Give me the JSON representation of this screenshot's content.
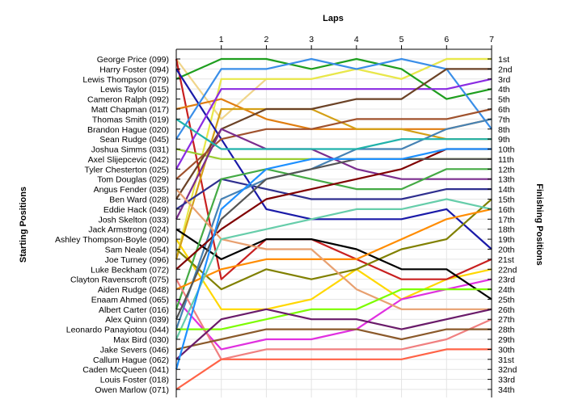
{
  "chart_data": {
    "type": "line",
    "title": "Laps",
    "ylabel_left": "Starting Positions",
    "ylabel_right": "Finishing Positions",
    "x": [
      0,
      1,
      2,
      3,
      4,
      5,
      6,
      7
    ],
    "x_tick_labels": [
      "1",
      "2",
      "3",
      "4",
      "5",
      "6",
      "7"
    ],
    "ylim": [
      1,
      34
    ],
    "y_inverted": true,
    "grid": true,
    "starting_labels": [
      "George Price (099)",
      "Harry Foster (094)",
      "Lewis Thompson (079)",
      "Lewis Taylor (015)",
      "Cameron Ralph (092)",
      "Matt Chapman (017)",
      "Thomas Smith (019)",
      "Brandon Hague (020)",
      "Sean Rudge (045)",
      "Joshua Simms (031)",
      "Axel Slijepcevic (042)",
      "Tyler Chesterton (025)",
      "Tom Douglas (029)",
      "Angus Fender (035)",
      "Ben Ward (028)",
      "Eddie Hack (049)",
      "Josh Skelton (033)",
      "Jack Armstrong (024)",
      "Ashley Thompson-Boyle (090)",
      "Sam Neale (054)",
      "Joe Turney (096)",
      "Luke Beckham (072)",
      "Clayton Ravenscroft (075)",
      "Aiden Rudge (048)",
      "Enaam Ahmed (065)",
      "Albert Carter (016)",
      "Alex Quinn (039)",
      "Leonardo Panayiotou (044)",
      "Max Bird (030)",
      "Jake Severs (046)",
      "Callum Hague (062)",
      "Caden McQueen (041)",
      "Louis Foster (018)",
      "Owen Marlow (071)"
    ],
    "finishing_labels": [
      "1st",
      "2nd",
      "3rd",
      "4th",
      "5th",
      "6th",
      "7th",
      "8th",
      "9th",
      "10th",
      "11th",
      "12th",
      "13th",
      "14th",
      "15th",
      "16th",
      "17th",
      "18th",
      "19th",
      "20th",
      "21st",
      "22nd",
      "23rd",
      "24th",
      "25th",
      "26th",
      "27th",
      "28th",
      "29th",
      "30th",
      "31st",
      "32nd",
      "33rd",
      "34th"
    ],
    "series": [
      {
        "color": "#ffd700",
        "positions": [
          19,
          26,
          26,
          25,
          22,
          25,
          23,
          22
        ]
      },
      {
        "color": "#f0d58a",
        "positions": [
          1,
          7,
          3,
          3,
          2,
          3,
          1,
          1
        ]
      },
      {
        "color": "#e8e84a",
        "positions": [
          21,
          3,
          3,
          3,
          2,
          3,
          1,
          1
        ]
      },
      {
        "color": "#1e9e1e",
        "positions": [
          3,
          1,
          1,
          2,
          1,
          2,
          5,
          4
        ]
      },
      {
        "color": "#c82020",
        "positions": [
          1,
          23,
          19,
          19,
          21,
          23,
          23,
          21
        ]
      },
      {
        "color": "#e07d10",
        "positions": [
          6,
          5,
          7,
          8,
          8,
          8,
          8,
          7
        ]
      },
      {
        "color": "#d4a017",
        "positions": [
          21,
          6,
          6,
          6,
          8,
          8,
          9,
          9
        ]
      },
      {
        "color": "#1a1aa8",
        "positions": [
          2,
          9,
          16,
          17,
          17,
          17,
          16,
          20
        ]
      },
      {
        "color": "#3a8ee8",
        "positions": [
          9,
          2,
          2,
          1,
          2,
          1,
          2,
          8
        ]
      },
      {
        "color": "#9acd32",
        "positions": [
          10,
          11,
          11,
          11,
          11,
          11,
          11,
          11
        ]
      },
      {
        "color": "#8a2be2",
        "positions": [
          12,
          4,
          4,
          4,
          4,
          4,
          4,
          3
        ]
      },
      {
        "color": "#6b4226",
        "positions": [
          15,
          8,
          6,
          6,
          5,
          5,
          2,
          2
        ]
      },
      {
        "color": "#808000",
        "positions": [
          20,
          24,
          22,
          23,
          22,
          20,
          19,
          15
        ]
      },
      {
        "color": "#a0522d",
        "positions": [
          13,
          9,
          8,
          8,
          7,
          7,
          7,
          6
        ]
      },
      {
        "color": "#7b2d8e",
        "positions": [
          17,
          8,
          10,
          10,
          12,
          13,
          13,
          13
        ]
      },
      {
        "color": "#e030e0",
        "positions": [
          25,
          30,
          29,
          29,
          28,
          25,
          24,
          23
        ]
      },
      {
        "color": "#2f2f8f",
        "positions": [
          16,
          13,
          14,
          15,
          15,
          15,
          14,
          14
        ]
      },
      {
        "color": "#4682b4",
        "positions": [
          28,
          15,
          13,
          12,
          10,
          10,
          8,
          7
        ]
      },
      {
        "color": "#000000",
        "positions": [
          18,
          21,
          19,
          19,
          20,
          22,
          22,
          25
        ]
      },
      {
        "color": "#44aa44",
        "positions": [
          26,
          13,
          12,
          13,
          14,
          14,
          12,
          12
        ]
      },
      {
        "color": "#800000",
        "positions": [
          22,
          18,
          15,
          14,
          13,
          12,
          10,
          10
        ]
      },
      {
        "color": "#f08080",
        "positions": [
          23,
          31,
          30,
          30,
          30,
          30,
          29,
          27
        ]
      },
      {
        "color": "#ff8c00",
        "positions": [
          24,
          22,
          21,
          21,
          21,
          19,
          17,
          16
        ]
      },
      {
        "color": "#e8a070",
        "positions": [
          14,
          19,
          20,
          20,
          24,
          26,
          26,
          26
        ]
      },
      {
        "color": "#555555",
        "positions": [
          27,
          17,
          13,
          12,
          11,
          11,
          11,
          11
        ]
      },
      {
        "color": "#66cdaa",
        "positions": [
          29,
          19,
          18,
          17,
          16,
          16,
          15,
          16
        ]
      },
      {
        "color": "#7cfc00",
        "positions": [
          28,
          28,
          27,
          26,
          26,
          24,
          24,
          24
        ]
      },
      {
        "color": "#8b5a2b",
        "positions": [
          30,
          29,
          28,
          28,
          28,
          29,
          28,
          28
        ]
      },
      {
        "color": "#6a1b6a",
        "positions": [
          31,
          27,
          26,
          27,
          27,
          28,
          27,
          26
        ]
      },
      {
        "color": "#20b2aa",
        "positions": [
          7,
          10,
          10,
          10,
          10,
          9,
          9,
          9
        ]
      },
      {
        "color": "#1e90ff",
        "positions": [
          32,
          16,
          12,
          11,
          11,
          11,
          10,
          10
        ]
      },
      {
        "color": "#ff6347",
        "positions": [
          34,
          31,
          31,
          31,
          31,
          31,
          30,
          30
        ]
      }
    ]
  }
}
